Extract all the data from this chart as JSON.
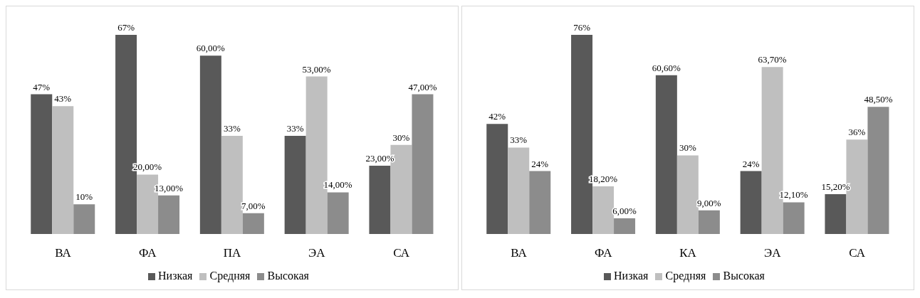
{
  "chart_data": [
    {
      "type": "bar",
      "categories": [
        "ВА",
        "ФА",
        "ПА",
        "ЭА",
        "СА"
      ],
      "legend": "bottom",
      "series": [
        {
          "name": "Низкая",
          "color": "#595959",
          "values": [
            47,
            67,
            60,
            33,
            23
          ],
          "value_labels": [
            "47%",
            "67%",
            "60,00%",
            "33%",
            "23,00%"
          ]
        },
        {
          "name": "Средняя",
          "color": "#bfbfbf",
          "values": [
            43,
            20,
            33,
            53,
            30
          ],
          "value_labels": [
            "43%",
            "20,00%",
            "33%",
            "53,00%",
            "30%"
          ]
        },
        {
          "name": "Высокая",
          "color": "#8c8c8c",
          "values": [
            10,
            13,
            7,
            14,
            47
          ],
          "value_labels": [
            "10%",
            "13,00%",
            "7,00%",
            "14,00%",
            "47,00%"
          ]
        }
      ]
    },
    {
      "type": "bar",
      "categories": [
        "ВА",
        "ФА",
        "КА",
        "ЭА",
        "СА"
      ],
      "legend": "bottom",
      "series": [
        {
          "name": "Низкая",
          "color": "#595959",
          "values": [
            42,
            76,
            60.6,
            24,
            15.2
          ],
          "value_labels": [
            "42%",
            "76%",
            "60,60%",
            "24%",
            "15,20%"
          ]
        },
        {
          "name": "Средняя",
          "color": "#bfbfbf",
          "values": [
            33,
            18.2,
            30,
            63.7,
            36
          ],
          "value_labels": [
            "33%",
            "18,20%",
            "30%",
            "63,70%",
            "36%"
          ]
        },
        {
          "name": "Высокая",
          "color": "#8c8c8c",
          "values": [
            24,
            6,
            9,
            12.1,
            48.5
          ],
          "value_labels": [
            "24%",
            "6,00%",
            "9,00%",
            "12,10%",
            "48,50%"
          ]
        }
      ]
    }
  ]
}
